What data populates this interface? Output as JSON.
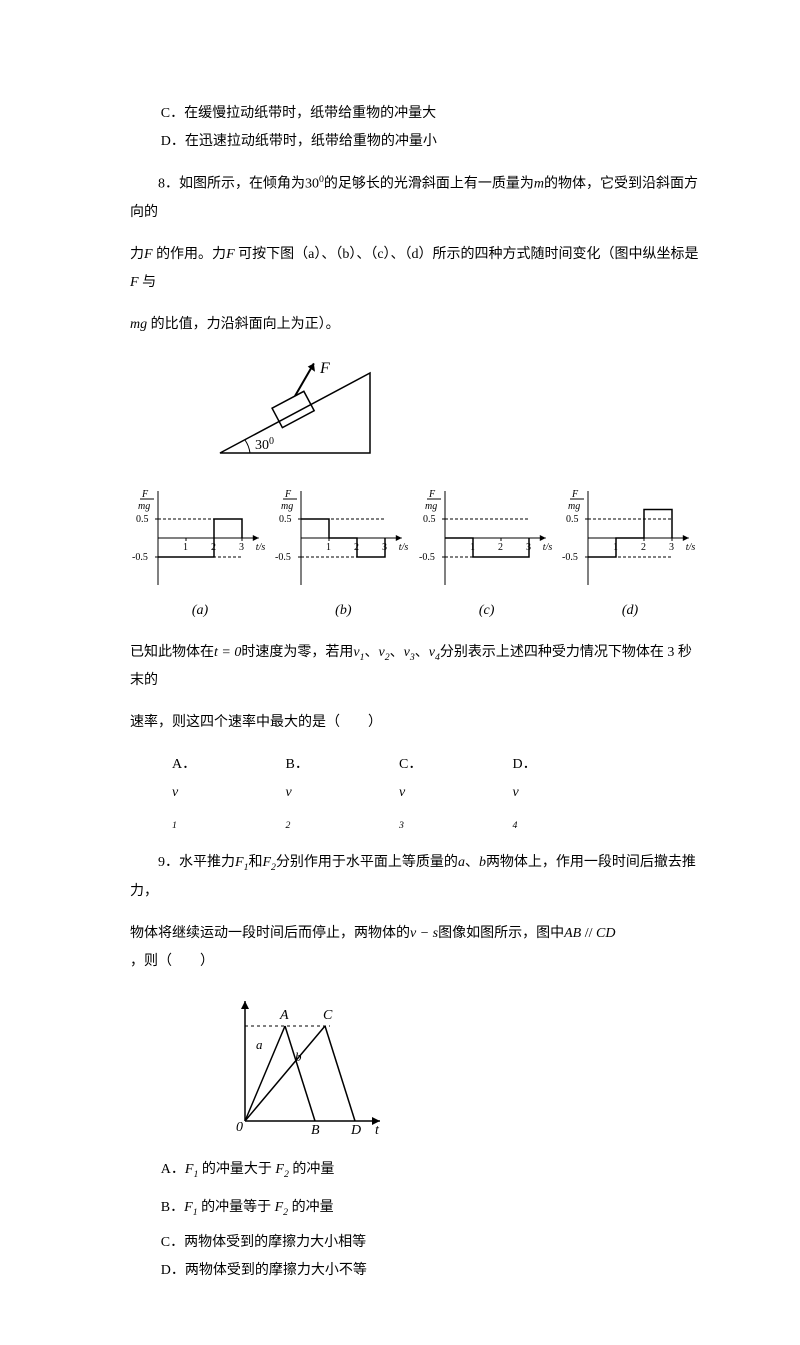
{
  "q7": {
    "optC": "C．在缓慢拉动纸带时，纸带给重物的冲量大",
    "optD": "D．在迅速拉动纸带时，纸带给重物的冲量小"
  },
  "q8": {
    "intro1_a": "8．如图所示，在倾角为",
    "angle": "30",
    "sup": "0",
    "intro1_b": "的足够长的光滑斜面上有一质量为",
    "mvar": "m",
    "intro1_c": "的物体，它受到沿斜面方向的",
    "intro2_a": "力",
    "Fvar": "F",
    "intro2_b": " 的作用。力",
    "intro2_c": " 可按下图（a）、（b）、（c）、（d）所示的四种方式随时间变化（图中纵坐标是 ",
    "intro2_d": " 与",
    "intro3_a": "mg",
    "intro3_b": " 的比值，力沿斜面向上为正）。",
    "incline_angle": "30",
    "charts": {
      "ylabel_top": "F",
      "ylabel_bot": "mg",
      "xlabel": "t/s",
      "ticks": {
        "p05": "0.5",
        "m05": "-0.5",
        "t1": "1",
        "t2": "2",
        "t3": "3"
      },
      "labels": [
        "(a)",
        "(b)",
        "(c)",
        "(d)"
      ],
      "series": [
        [
          [
            0,
            -0.5
          ],
          [
            2,
            -0.5
          ],
          [
            2,
            0.5
          ],
          [
            3,
            0.5
          ],
          [
            3,
            0
          ]
        ],
        [
          [
            0,
            0.5
          ],
          [
            1,
            0.5
          ],
          [
            1,
            0
          ],
          [
            2,
            0
          ],
          [
            2,
            -0.5
          ],
          [
            3,
            -0.5
          ],
          [
            3,
            0
          ]
        ],
        [
          [
            0,
            0
          ],
          [
            1,
            0
          ],
          [
            1,
            -0.5
          ],
          [
            3,
            -0.5
          ],
          [
            3,
            0
          ]
        ],
        [
          [
            0,
            -0.5
          ],
          [
            1,
            -0.5
          ],
          [
            1,
            0
          ],
          [
            2,
            0
          ],
          [
            2,
            0.75
          ],
          [
            3,
            0.75
          ],
          [
            3,
            0
          ]
        ]
      ]
    },
    "after1_a": "已知此物体在",
    "after1_t0": "t = 0",
    "after1_b": "时速度为零，若用",
    "v1": "v",
    "s1": "1",
    "v2": "v",
    "s2": "2",
    "v3": "v",
    "s3": "3",
    "v4": "v",
    "s4": "4",
    "after1_c": "分别表示上述四种受力情况下物体在 3 秒末的",
    "after2": "速率，则这四个速率中最大的是（　　）",
    "optA_l": "A．",
    "optA_v": "v",
    "optA_s": "1",
    "optB_l": "B．",
    "optB_v": "v",
    "optB_s": "2",
    "optC_l": "C．",
    "optC_v": "v",
    "optC_s": "3",
    "optD_l": "D．",
    "optD_v": "v",
    "optD_s": "4"
  },
  "q9": {
    "l1_a": "9．水平推力",
    "F1": "F",
    "s1": "1",
    "l1_b": "和",
    "F2": "F",
    "s2": "2",
    "l1_c": "分别作用于水平面上等质量的",
    "avar": "a",
    "l1_d": "、",
    "bvar": "b",
    "l1_e": "两物体上，作用一段时间后撤去推力，",
    "l2_a": "物体将继续运动一段时间后而停止，两物体的",
    "vs": "v − s",
    "l2_b": "图像如图所示，图中",
    "AB": "AB",
    "par": " // ",
    "CD": "CD",
    "l2_c": " ，则（　　）",
    "graph": {
      "points": {
        "O": "0",
        "A": "A",
        "B": "B",
        "C": "C",
        "D": "D",
        "a": "a",
        "b": "b",
        "t": "t"
      }
    },
    "optA_a": "A．",
    "optA_b": " 的冲量大于 ",
    "optA_c": " 的冲量",
    "optB_a": "B．",
    "optB_b": " 的冲量等于 ",
    "optB_c": " 的冲量",
    "optC": "C．两物体受到的摩擦力大小相等",
    "optD": "D．两物体受到的摩擦力大小不等"
  }
}
